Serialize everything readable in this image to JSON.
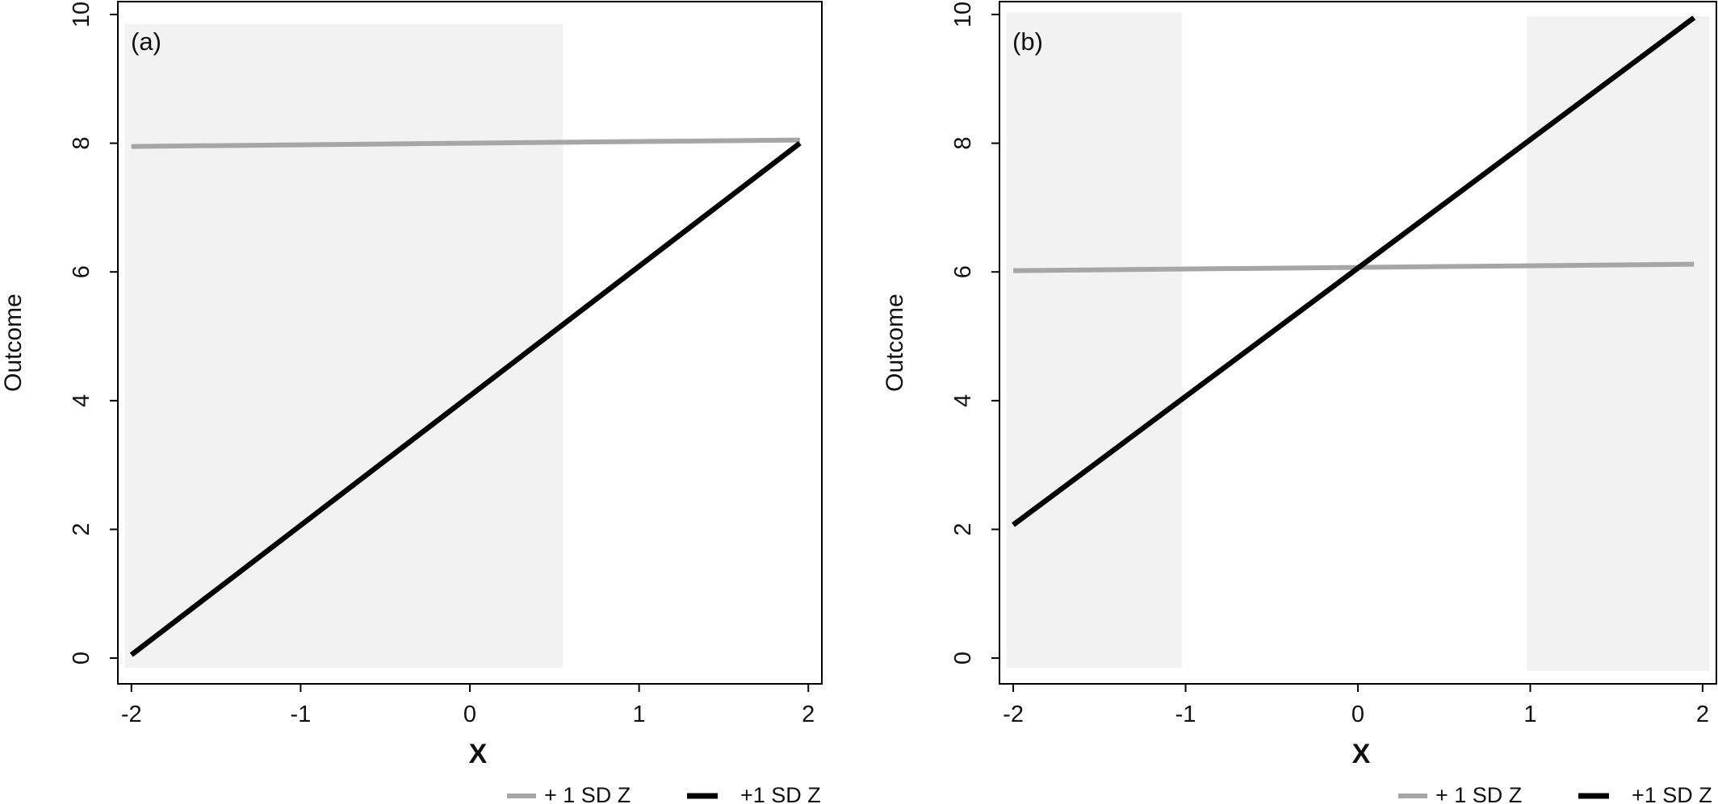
{
  "chart_data": [
    {
      "type": "line",
      "panel_label": "(a)",
      "xlabel": "X",
      "ylabel": "Outcome",
      "xlim": [
        -2.08,
        2.08
      ],
      "ylim": [
        -0.4,
        10.2
      ],
      "x_ticks": [
        -2,
        -1,
        0,
        1,
        2
      ],
      "y_ticks": [
        0,
        2,
        4,
        6,
        8,
        10
      ],
      "shaded_regions": [
        {
          "x": [
            -2.04,
            0.55
          ],
          "y": [
            -0.15,
            9.85
          ]
        }
      ],
      "series": [
        {
          "name": "+ 1 SD Z",
          "color": "#a6a6a6",
          "x": [
            -2,
            1.95
          ],
          "y": [
            7.95,
            8.05
          ]
        },
        {
          "name": "+1 SD Z",
          "color": "#000000",
          "x": [
            -2,
            1.95
          ],
          "y": [
            0.05,
            8.0
          ]
        }
      ],
      "grid": false,
      "legend_position": "bottom-right"
    },
    {
      "type": "line",
      "panel_label": "(b)",
      "xlabel": "X",
      "ylabel": "Outcome",
      "xlim": [
        -2.08,
        2.08
      ],
      "ylim": [
        -0.4,
        10.2
      ],
      "x_ticks": [
        -2,
        -1,
        0,
        1,
        2
      ],
      "y_ticks": [
        0,
        2,
        4,
        6,
        8,
        10
      ],
      "shaded_regions": [
        {
          "x": [
            -2.04,
            -1.02
          ],
          "y": [
            -0.15,
            10.03
          ]
        },
        {
          "x": [
            0.98,
            2.04
          ],
          "y": [
            -0.2,
            9.97
          ]
        }
      ],
      "series": [
        {
          "name": "+ 1 SD Z",
          "color": "#a6a6a6",
          "x": [
            -2,
            1.95
          ],
          "y": [
            6.02,
            6.12
          ]
        },
        {
          "name": "+1 SD Z",
          "color": "#000000",
          "x": [
            -2,
            1.95
          ],
          "y": [
            2.07,
            9.95
          ]
        }
      ],
      "grid": false,
      "legend_position": "bottom-right"
    }
  ]
}
